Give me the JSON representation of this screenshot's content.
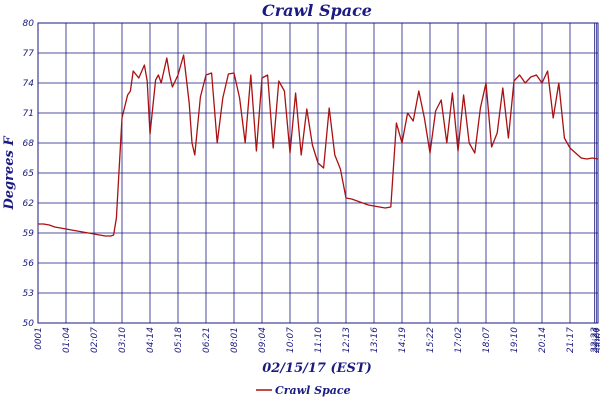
{
  "chart_data": {
    "type": "line",
    "title": "Crawl Space",
    "xlabel": "02/15/17 (EST)",
    "ylabel": "Degrees F",
    "ylim": [
      50,
      80
    ],
    "yticks": [
      "50",
      "53",
      "56",
      "59",
      "62",
      "65",
      "68",
      "71",
      "74",
      "77",
      "80"
    ],
    "xticks": [
      "0001",
      "01:04",
      "02:07",
      "03:10",
      "04:14",
      "05:18",
      "06:21",
      "08:01",
      "09:04",
      "10:07",
      "11:10",
      "12:13",
      "13:16",
      "14:19",
      "15:22",
      "17:02",
      "18:07",
      "19:10",
      "20:14",
      "21:17",
      "22:23",
      "23:26",
      "0001"
    ],
    "grid": true,
    "legend": "bottom-center",
    "colors": {
      "series": "#aa1111",
      "grid": "#1a1a80",
      "text": "#1a1a80"
    },
    "series": [
      {
        "name": "Crawl Space",
        "x": [
          0.0,
          0.01,
          0.02,
          0.03,
          0.04,
          0.05,
          0.07,
          0.08,
          0.09,
          0.1,
          0.11,
          0.12,
          0.13,
          0.135,
          0.14,
          0.15,
          0.16,
          0.165,
          0.17,
          0.18,
          0.19,
          0.195,
          0.2,
          0.21,
          0.215,
          0.22,
          0.23,
          0.235,
          0.24,
          0.25,
          0.26,
          0.27,
          0.275,
          0.28,
          0.29,
          0.3,
          0.31,
          0.32,
          0.33,
          0.34,
          0.35,
          0.36,
          0.37,
          0.38,
          0.39,
          0.4,
          0.41,
          0.42,
          0.43,
          0.44,
          0.45,
          0.46,
          0.47,
          0.48,
          0.49,
          0.5,
          0.51,
          0.52,
          0.53,
          0.54,
          0.55,
          0.56,
          0.57,
          0.58,
          0.59,
          0.6,
          0.61,
          0.62,
          0.63,
          0.64,
          0.65,
          0.66,
          0.67,
          0.68,
          0.69,
          0.7,
          0.71,
          0.72,
          0.73,
          0.74,
          0.75,
          0.76,
          0.77,
          0.78,
          0.79,
          0.8,
          0.81,
          0.82,
          0.83,
          0.84,
          0.85,
          0.86,
          0.87,
          0.88,
          0.89,
          0.9,
          0.91,
          0.92,
          0.93,
          0.94,
          0.95,
          0.96,
          0.97,
          0.98,
          0.99,
          1.0
        ],
        "values": [
          59.9,
          59.9,
          59.8,
          59.6,
          59.5,
          59.4,
          59.2,
          59.1,
          59.0,
          58.9,
          58.8,
          58.7,
          58.7,
          58.8,
          60.5,
          70.5,
          72.8,
          73.2,
          75.2,
          74.5,
          75.8,
          74.2,
          68.9,
          74.3,
          74.8,
          74.0,
          76.5,
          74.8,
          73.6,
          74.8,
          76.8,
          72.0,
          68.0,
          66.8,
          72.6,
          74.8,
          75.0,
          68.0,
          72.5,
          74.9,
          75.0,
          72.5,
          68.0,
          74.8,
          67.2,
          74.5,
          74.8,
          67.5,
          74.2,
          73.2,
          67.0,
          73.0,
          66.8,
          71.4,
          67.8,
          66.0,
          65.5,
          71.5,
          66.8,
          65.4,
          62.5,
          62.4,
          62.2,
          62.0,
          61.8,
          61.7,
          61.6,
          61.5,
          61.6,
          70.0,
          68.0,
          71.0,
          70.2,
          73.2,
          70.5,
          67.0,
          71.2,
          72.3,
          68.0,
          73.0,
          67.2,
          72.8,
          68.0,
          67.0,
          71.5,
          74.0,
          67.6,
          69.0,
          73.5,
          68.5,
          74.2,
          74.8,
          74.0,
          74.6,
          74.8,
          74.0,
          75.2,
          70.5,
          74.0,
          68.5,
          67.5,
          67.0,
          66.5,
          66.4,
          66.5,
          66.4
        ]
      }
    ]
  }
}
